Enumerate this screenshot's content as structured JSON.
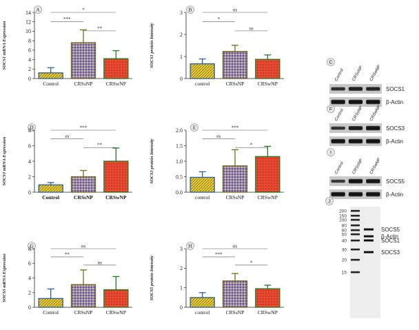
{
  "chart_data": [
    {
      "type": "bar",
      "panel": "A",
      "ylabel": "SOCS1 mRNA Expression",
      "ylim": [
        0,
        14
      ],
      "yticks": [
        0,
        2,
        4,
        6,
        8,
        10,
        12,
        14
      ],
      "categories": [
        "Control",
        "CRSsNP",
        "CRSwNP"
      ],
      "cat_style": "serif",
      "values": [
        1.2,
        7.6,
        4.2
      ],
      "errors": [
        1.1,
        2.7,
        1.7
      ],
      "significance": [
        {
          "from": 0,
          "to": 2,
          "label": "*",
          "level": 2
        },
        {
          "from": 0,
          "to": 1,
          "label": "***",
          "level": 1
        },
        {
          "from": 1,
          "to": 2,
          "label": "**",
          "level": 0
        }
      ]
    },
    {
      "type": "bar",
      "panel": "B",
      "ylabel": "SOCS1 protein Intensity",
      "ylim": [
        0,
        3
      ],
      "yticks": [
        0,
        1,
        2,
        3
      ],
      "categories": [
        "control",
        "CRSsNP",
        "CRSwNP"
      ],
      "cat_style": "sans",
      "values": [
        0.67,
        1.23,
        0.87
      ],
      "errors": [
        0.22,
        0.28,
        0.2
      ],
      "significance": [
        {
          "from": 0,
          "to": 2,
          "label": "ns",
          "level": 2
        },
        {
          "from": 0,
          "to": 1,
          "label": "*",
          "level": 1
        },
        {
          "from": 1,
          "to": 2,
          "label": "ns",
          "level": 0
        }
      ]
    },
    {
      "type": "bar",
      "panel": "D",
      "ylabel": "SOCS3 mRNA Expression",
      "ylim": [
        0,
        8
      ],
      "yticks": [
        0,
        2,
        4,
        6,
        8
      ],
      "categories": [
        "Control",
        "CRSsNP",
        "CRSwNP"
      ],
      "cat_style": "bold",
      "values": [
        0.95,
        2.0,
        4.0
      ],
      "errors": [
        0.3,
        0.8,
        1.7
      ],
      "significance": [
        {
          "from": 0,
          "to": 2,
          "label": "***",
          "level": 2
        },
        {
          "from": 0,
          "to": 1,
          "label": "ns",
          "level": 1
        },
        {
          "from": 1,
          "to": 2,
          "label": "**",
          "level": 0
        }
      ]
    },
    {
      "type": "bar",
      "panel": "E",
      "ylabel": "SOCS3 protein Intensity",
      "ylim": [
        0,
        2.0
      ],
      "yticks": [
        0,
        0.5,
        1.0,
        1.5,
        2.0
      ],
      "ytick_labels": [
        "0.0",
        "0.5",
        "1.0",
        "1.5",
        "2.0"
      ],
      "categories": [
        "control",
        "CRSsNP",
        "CRSwNP"
      ],
      "cat_style": "sans",
      "values": [
        0.48,
        0.85,
        1.15
      ],
      "errors": [
        0.18,
        0.52,
        0.33
      ],
      "significance": [
        {
          "from": 0,
          "to": 2,
          "label": "***",
          "level": 2
        },
        {
          "from": 0,
          "to": 1,
          "label": "ns",
          "level": 1
        },
        {
          "from": 1,
          "to": 2,
          "label": "*",
          "level": 0
        }
      ]
    },
    {
      "type": "bar",
      "panel": "G",
      "ylabel": "SOCS5 mRNA Expression",
      "ylim": [
        0,
        8
      ],
      "yticks": [
        0,
        2,
        4,
        6,
        8
      ],
      "categories": [
        "Control",
        "CRSsNP",
        "CRSwNP"
      ],
      "cat_style": "serif",
      "values": [
        1.2,
        3.1,
        2.4
      ],
      "errors": [
        1.3,
        2.0,
        1.8
      ],
      "significance": [
        {
          "from": 0,
          "to": 2,
          "label": "ns",
          "level": 2
        },
        {
          "from": 0,
          "to": 1,
          "label": "**",
          "level": 1
        },
        {
          "from": 1,
          "to": 2,
          "label": "ns",
          "level": 0
        }
      ]
    },
    {
      "type": "bar",
      "panel": "H",
      "ylabel": "SOCS5 protein Intensity",
      "ylim": [
        0,
        3
      ],
      "yticks": [
        0,
        1,
        2,
        3
      ],
      "categories": [
        "control",
        "CRSsNP",
        "CRSwNP"
      ],
      "cat_style": "sans",
      "values": [
        0.5,
        1.35,
        0.95
      ],
      "errors": [
        0.25,
        0.38,
        0.18
      ],
      "significance": [
        {
          "from": 0,
          "to": 2,
          "label": "ns",
          "level": 2
        },
        {
          "from": 0,
          "to": 1,
          "label": "***",
          "level": 1
        },
        {
          "from": 1,
          "to": 2,
          "label": "*",
          "level": 0
        }
      ]
    }
  ],
  "bar_colors": {
    "control": "#e0c530",
    "crsnp": "#9282b8",
    "crswnp": "#e0402c"
  },
  "blots": [
    {
      "panel": "C",
      "lanes": [
        "Control",
        "CRSsNP",
        "CRSwNP"
      ],
      "bands": [
        "SOCS1",
        "β-Actin"
      ]
    },
    {
      "panel": "F",
      "lanes": [
        "Control",
        "CRSsNP",
        "CRSwNP"
      ],
      "bands": [
        "SOCS3",
        "β-Actin"
      ]
    },
    {
      "panel": "I",
      "lanes": [
        "Control",
        "CRSsNP",
        "CRSwNP"
      ],
      "bands": [
        "SOCS5",
        "β-Actin"
      ]
    }
  ],
  "ladder": {
    "panel": "J",
    "markers": [
      "200",
      "150",
      "100",
      "80",
      "60",
      "50",
      "40",
      "30",
      "20",
      "15"
    ],
    "bands": [
      "SOCS5",
      "β-Actin",
      "SOCS1",
      "SOCS3"
    ]
  }
}
